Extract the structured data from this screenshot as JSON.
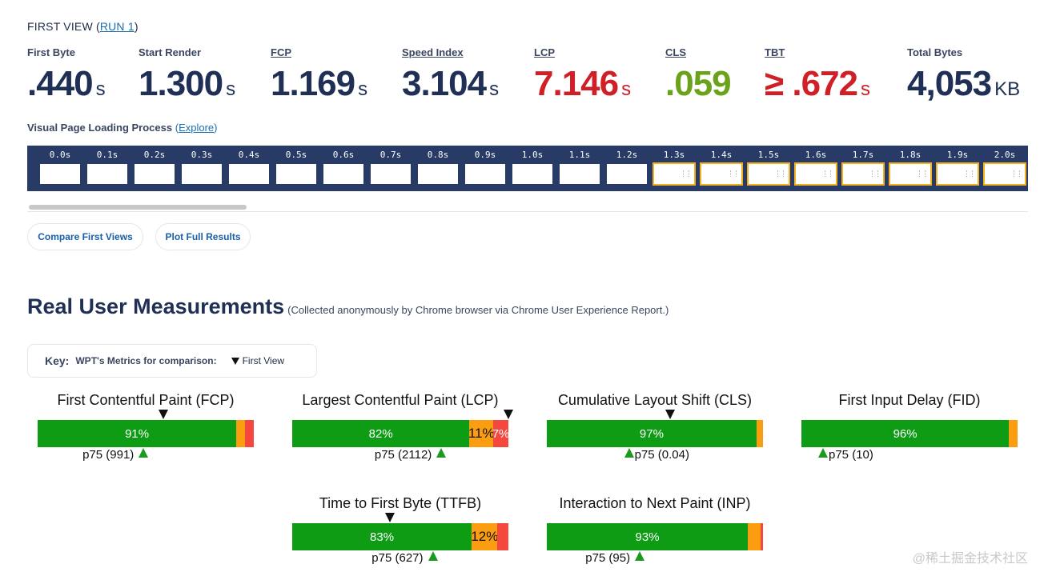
{
  "run_header": {
    "prefix": "FIRST VIEW (",
    "run_link": "RUN 1",
    "suffix": ")"
  },
  "metrics": [
    {
      "label": "First Byte",
      "value": ".440",
      "unit": "s",
      "underline": false,
      "color": "#1f2f55"
    },
    {
      "label": "Start Render",
      "value": "1.300",
      "unit": "s",
      "underline": false,
      "color": "#1f2f55"
    },
    {
      "label": "FCP",
      "value": "1.169",
      "unit": "s",
      "underline": true,
      "color": "#1f2f55"
    },
    {
      "label": "Speed Index",
      "value": "3.104",
      "unit": "s",
      "underline": true,
      "color": "#1f2f55"
    },
    {
      "label": "LCP",
      "value": "7.146",
      "unit": "s",
      "underline": true,
      "color": "#cf2027"
    },
    {
      "label": "CLS",
      "value": ".059",
      "unit": "",
      "underline": true,
      "color": "#6aa31a"
    },
    {
      "label": "TBT",
      "value": "≥ .672",
      "unit": "s",
      "underline": true,
      "color": "#cf2027"
    },
    {
      "label": "Total Bytes",
      "value": "4,053",
      "unit": "KB",
      "underline": false,
      "color": "#1f2f55"
    }
  ],
  "visual_loading": {
    "label": "Visual Page Loading Process",
    "open_paren": "(",
    "explore": "Explore",
    "close_paren": ")"
  },
  "filmstrip": [
    {
      "time": "0.0s",
      "changed": false
    },
    {
      "time": "0.1s",
      "changed": false
    },
    {
      "time": "0.2s",
      "changed": false
    },
    {
      "time": "0.3s",
      "changed": false
    },
    {
      "time": "0.4s",
      "changed": false
    },
    {
      "time": "0.5s",
      "changed": false
    },
    {
      "time": "0.6s",
      "changed": false
    },
    {
      "time": "0.7s",
      "changed": false
    },
    {
      "time": "0.8s",
      "changed": false
    },
    {
      "time": "0.9s",
      "changed": false
    },
    {
      "time": "1.0s",
      "changed": false
    },
    {
      "time": "1.1s",
      "changed": false
    },
    {
      "time": "1.2s",
      "changed": false
    },
    {
      "time": "1.3s",
      "changed": true
    },
    {
      "time": "1.4s",
      "changed": true
    },
    {
      "time": "1.5s",
      "changed": true
    },
    {
      "time": "1.6s",
      "changed": true
    },
    {
      "time": "1.7s",
      "changed": true
    },
    {
      "time": "1.8s",
      "changed": true
    },
    {
      "time": "1.9s",
      "changed": true
    },
    {
      "time": "2.0s",
      "changed": true
    }
  ],
  "buttons": {
    "compare": "Compare First Views",
    "plot": "Plot Full Results"
  },
  "rum": {
    "title": "Real User Measurements",
    "subtitle": "(Collected anonymously by Chrome browser via Chrome User Experience Report.)"
  },
  "key": {
    "label": "Key:",
    "desc": "WPT's Metrics for comparison:",
    "first_view": "First View"
  },
  "rum_metrics": [
    {
      "name": "First Contentful Paint (FCP)",
      "good": 91,
      "mid": 4,
      "bad": 4,
      "labels": [
        "91%",
        "",
        ""
      ],
      "wpt_pct": 58,
      "p75_text": "p75 (991)",
      "p75_pct": 49,
      "p75_label_left": true
    },
    {
      "name": "Largest Contentful Paint (LCP)",
      "good": 82,
      "mid": 11,
      "bad": 7,
      "labels": [
        "82%",
        "11%",
        "7%"
      ],
      "wpt_pct": 100,
      "p75_text": "p75 (2112)",
      "p75_pct": 69,
      "p75_label_left": true
    },
    {
      "name": "Cumulative Layout Shift (CLS)",
      "good": 97,
      "mid": 3,
      "bad": 0,
      "labels": [
        "97%",
        "",
        ""
      ],
      "wpt_pct": 57,
      "p75_text": "p75 (0.04)",
      "p75_pct": 38,
      "p75_label_left": false
    },
    {
      "name": "First Input Delay (FID)",
      "good": 96,
      "mid": 4,
      "bad": 0,
      "labels": [
        "96%",
        "",
        ""
      ],
      "wpt_pct": null,
      "p75_text": "p75 (10)",
      "p75_pct": 10,
      "p75_label_left": false
    },
    {
      "name": "Time to First Byte (TTFB)",
      "good": 83,
      "mid": 12,
      "bad": 5,
      "labels": [
        "83%",
        "12%",
        ""
      ],
      "wpt_pct": 45,
      "p75_text": "p75 (627)",
      "p75_pct": 65,
      "p75_label_left": true
    },
    {
      "name": "Interaction to Next Paint (INP)",
      "good": 93,
      "mid": 6,
      "bad": 1,
      "labels": [
        "93%",
        "",
        ""
      ],
      "wpt_pct": null,
      "p75_text": "p75 (95)",
      "p75_pct": 43,
      "p75_label_left": true
    }
  ],
  "watermark": "@稀土掘金技术社区"
}
